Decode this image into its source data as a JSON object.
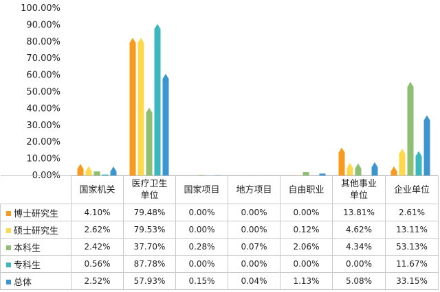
{
  "chart_data": {
    "type": "bar",
    "categories": [
      "国家机关",
      "医疗卫生单位",
      "国家项目",
      "地方项目",
      "自由职业",
      "其他事业单位",
      "企业单位"
    ],
    "category_labels": [
      [
        "国家机关"
      ],
      [
        "医疗卫生",
        "单位"
      ],
      [
        "国家项目"
      ],
      [
        "地方项目"
      ],
      [
        "自由职业"
      ],
      [
        "其他事业",
        "单位"
      ],
      [
        "企业单位"
      ]
    ],
    "ylim": [
      0,
      100
    ],
    "yticks": [
      "0.00%",
      "10.00%",
      "20.00%",
      "30.00%",
      "40.00%",
      "50.00%",
      "60.00%",
      "70.00%",
      "80.00%",
      "90.00%",
      "100.00%"
    ],
    "grid": false,
    "legend": "left, inside data table",
    "series": [
      {
        "name": "博士研究生",
        "color": "#f79a1f",
        "values": [
          4.1,
          79.48,
          0.0,
          0.0,
          0.0,
          13.81,
          2.61
        ],
        "labels": [
          "4.10%",
          "79.48%",
          "0.00%",
          "0.00%",
          "0.00%",
          "13.81%",
          "2.61%"
        ]
      },
      {
        "name": "硕士研究生",
        "color": "#ffd84e",
        "values": [
          2.62,
          79.53,
          0.0,
          0.0,
          0.12,
          4.62,
          13.11
        ],
        "labels": [
          "2.62%",
          "79.53%",
          "0.00%",
          "0.00%",
          "0.12%",
          "4.62%",
          "13.11%"
        ]
      },
      {
        "name": "本科生",
        "color": "#8fbf72",
        "values": [
          2.42,
          37.7,
          0.28,
          0.07,
          2.06,
          4.34,
          53.13
        ],
        "labels": [
          "2.42%",
          "37.70%",
          "0.28%",
          "0.07%",
          "2.06%",
          "4.34%",
          "53.13%"
        ]
      },
      {
        "name": "专科生",
        "color": "#3cb7bd",
        "values": [
          0.56,
          87.78,
          0.0,
          0.0,
          0.0,
          0.0,
          11.67
        ],
        "labels": [
          "0.56%",
          "87.78%",
          "0.00%",
          "0.00%",
          "0.00%",
          "0.00%",
          "11.67%"
        ]
      },
      {
        "name": "总体",
        "color": "#3d95cf",
        "values": [
          2.52,
          57.93,
          0.15,
          0.04,
          1.13,
          5.08,
          33.15
        ],
        "labels": [
          "2.52%",
          "57.93%",
          "0.15%",
          "0.04%",
          "1.13%",
          "5.08%",
          "33.15%"
        ]
      }
    ]
  }
}
